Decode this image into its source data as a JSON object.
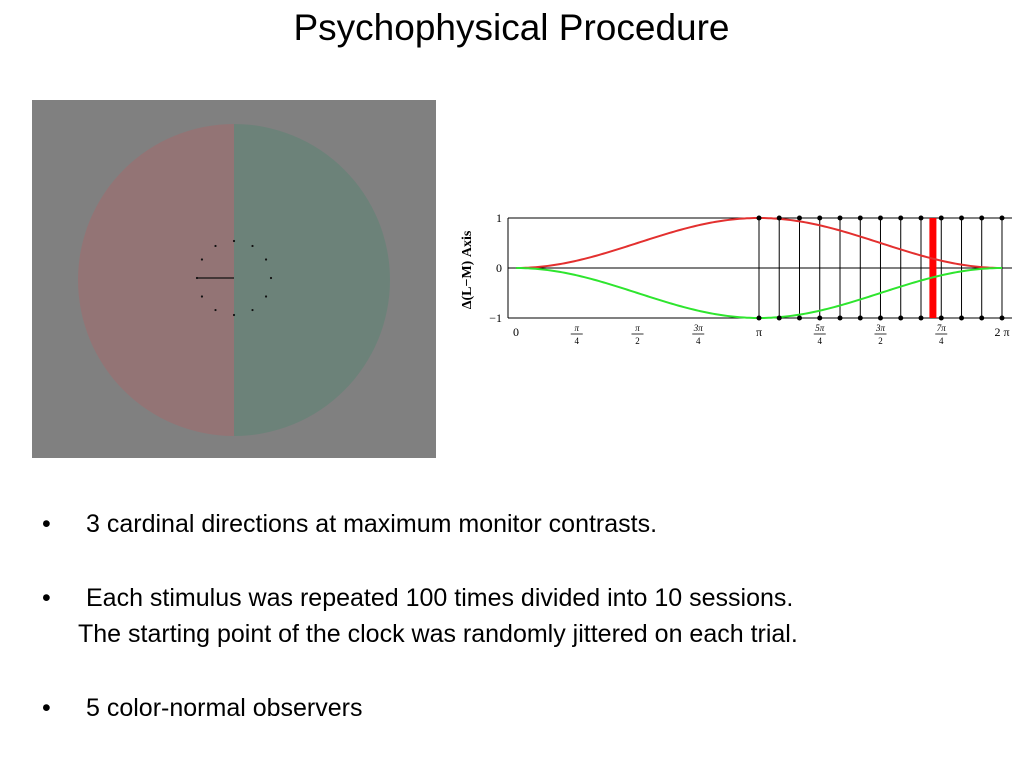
{
  "title": "Psychophysical Procedure",
  "colors": {
    "stimulus_background": "#808080",
    "left_half": "#937475",
    "right_half": "#6c8279",
    "red_curve": "#e3302f",
    "green_curve": "#2ee52e",
    "highlight_bar": "#ff0000"
  },
  "chart_data": {
    "type": "line",
    "ylabel": "Δ(L−M) Axis",
    "xlim": [
      0,
      6.2832
    ],
    "ylim": [
      -1,
      1
    ],
    "x_ticks": [
      {
        "value": 0,
        "num": "0",
        "den": ""
      },
      {
        "value": 0.7854,
        "num": "π",
        "den": "4"
      },
      {
        "value": 1.5708,
        "num": "π",
        "den": "2"
      },
      {
        "value": 2.3562,
        "num": "3π",
        "den": "4"
      },
      {
        "value": 3.1416,
        "num": "π",
        "den": ""
      },
      {
        "value": 3.927,
        "num": "5π",
        "den": "4"
      },
      {
        "value": 4.7124,
        "num": "3π",
        "den": "2"
      },
      {
        "value": 5.4978,
        "num": "7π",
        "den": "4"
      },
      {
        "value": 6.2832,
        "num": "2 π",
        "den": ""
      }
    ],
    "y_ticks": [
      "1",
      "0",
      "−1"
    ],
    "series": [
      {
        "color": "#e3302f",
        "formula": "sin^2(x/2)"
      },
      {
        "color": "#2ee52e",
        "formula": "-sin^2(x/2)"
      }
    ],
    "sample_times": [
      3.1416,
      3.403,
      3.665,
      3.927,
      4.189,
      4.451,
      4.712,
      4.974,
      5.236,
      5.498,
      5.76,
      6.021,
      6.283
    ],
    "highlight_x": 5.39
  },
  "bullets": [
    {
      "marker": "•",
      "lines": [
        "3 cardinal directions at maximum monitor contrasts."
      ]
    },
    {
      "marker": "•",
      "lines": [
        "Each stimulus was repeated 100 times divided into 10 sessions.",
        "The starting point of the clock was randomly jittered on each trial."
      ]
    },
    {
      "marker": "•",
      "lines": [
        "5 color-normal observers"
      ]
    }
  ]
}
